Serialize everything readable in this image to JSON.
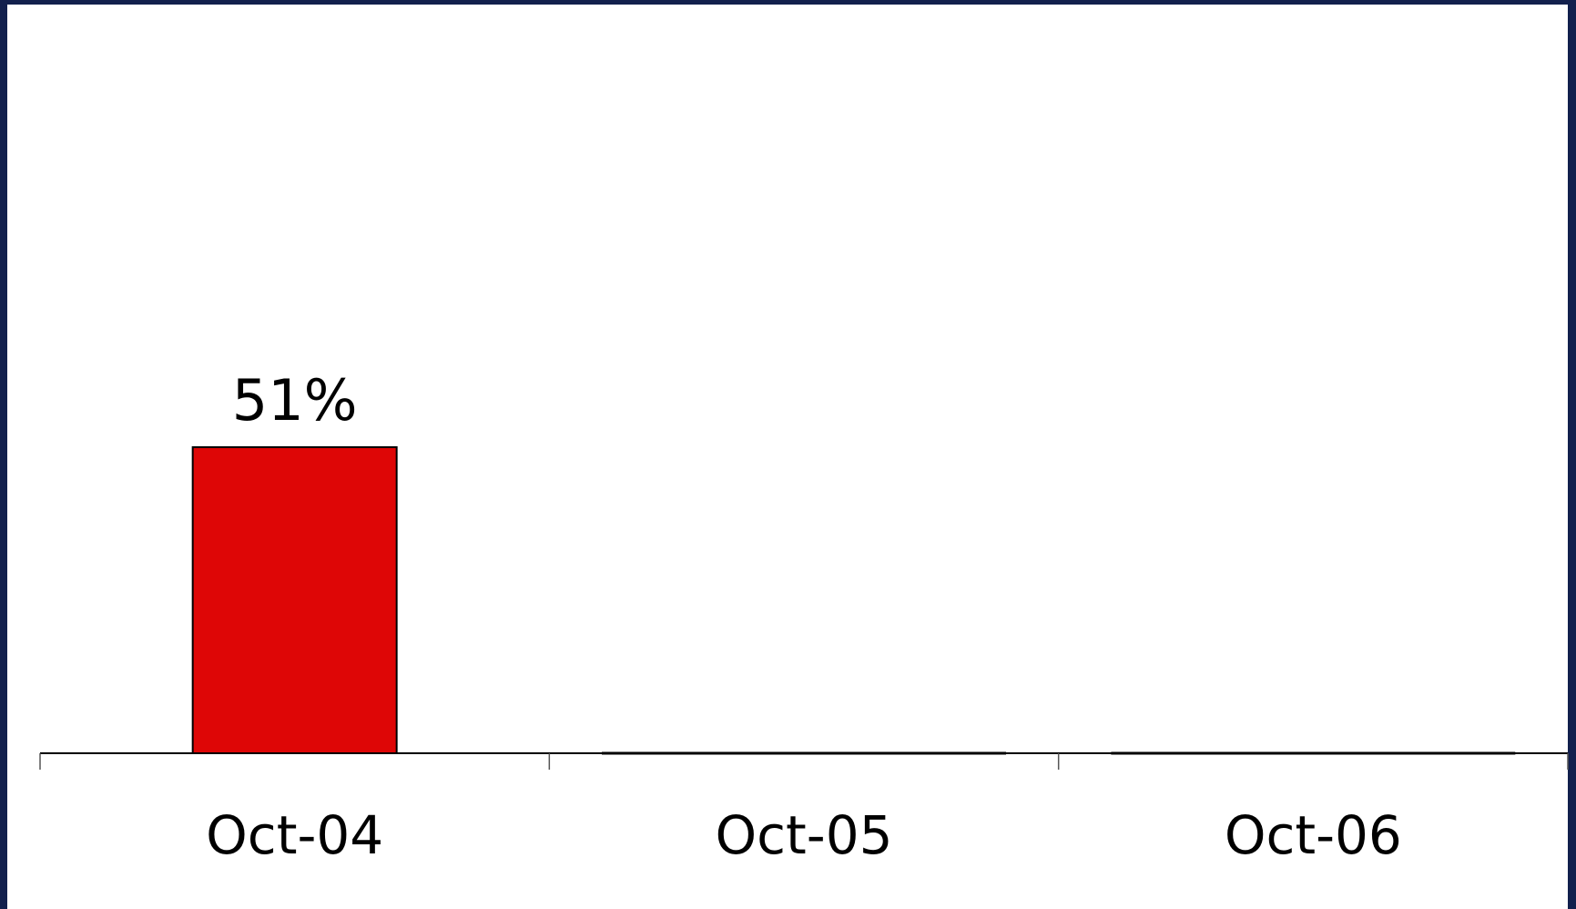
{
  "chart_data": {
    "type": "bar",
    "categories": [
      "Oct-04",
      "Oct-05",
      "Oct-06"
    ],
    "values": [
      51,
      0,
      0
    ],
    "value_unit": "%",
    "data_labels": [
      "51%",
      "",
      ""
    ],
    "title": "",
    "xlabel": "",
    "ylabel": "",
    "ylim": [
      0,
      100
    ],
    "grid": false,
    "legend": "none",
    "colors": {
      "bar": "#de0606",
      "bar_outline": "#000000",
      "frame": "#12204d",
      "background": "#ffffff"
    }
  }
}
